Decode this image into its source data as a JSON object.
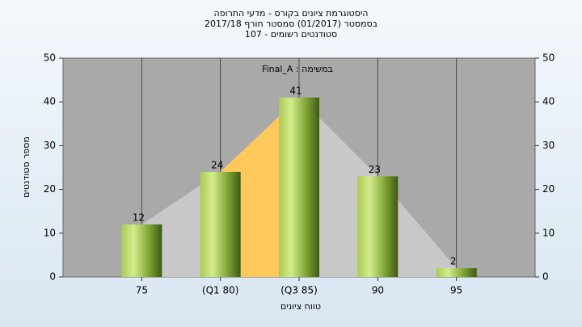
{
  "chart_data": {
    "type": "bar",
    "title": "היסטוגרמת ציונים בקורס - מדעי התרופה",
    "subtitle": "בסמסטר  (01/2017)  סמסטר חורף 2017/18",
    "note": "סטודנטים רשומים - 107",
    "annotation": "במשימה : Final_A",
    "x_label": "טווח ציונים",
    "y_label": "מספר סטודנטים",
    "categories": [
      "75",
      "(Q1 80)",
      "(Q3 85)",
      "90",
      "95"
    ],
    "values": [
      12,
      24,
      41,
      23,
      2
    ],
    "color": "#8fb43c",
    "ylim": [
      0,
      50
    ],
    "yticks": [
      0,
      10,
      20,
      30,
      40,
      50
    ],
    "y2lim": [
      0,
      50
    ],
    "y2ticks": [
      0,
      10,
      20,
      30,
      40,
      50
    ],
    "grid": true
  }
}
